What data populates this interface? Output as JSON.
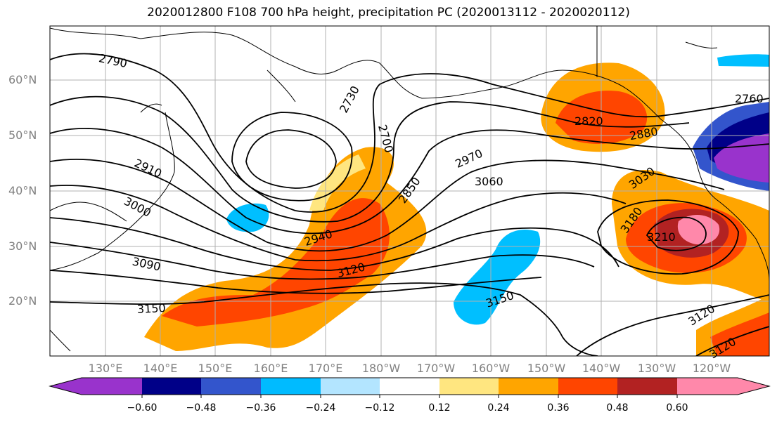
{
  "title": "2020012800 F108 700 hPa height, precipitation PC (2020013112 - 2020020112)",
  "lat_labels": [
    "60°N",
    "50°N",
    "40°N",
    "30°N",
    "20°N"
  ],
  "lon_labels": [
    "130°E",
    "140°E",
    "150°E",
    "160°E",
    "170°E",
    "180°W",
    "170°W",
    "160°W",
    "150°W",
    "140°W",
    "130°W",
    "120°W"
  ],
  "contour_labels": [
    "2790",
    "2730",
    "2700",
    "2760",
    "2820",
    "2880",
    "2910",
    "2970",
    "3000",
    "3030",
    "3060",
    "2850",
    "2940",
    "3120",
    "3090",
    "3150",
    "3180",
    "3210",
    "3150",
    "3120",
    "3120"
  ],
  "colorbar": {
    "ticks": [
      "−0.60",
      "−0.48",
      "−0.36",
      "−0.24",
      "−0.12",
      "0.12",
      "0.24",
      "0.36",
      "0.48",
      "0.60"
    ],
    "colors": [
      "#9933cc",
      "#000088",
      "#3355cc",
      "#00bbff",
      "#b3e5ff",
      "#ffffff",
      "#ffe680",
      "#ffa500",
      "#ff4500",
      "#b22222",
      "#ff88aa"
    ]
  },
  "palette": {
    "blue_light": "#00bfff",
    "blue_mid": "#3355cc",
    "navy": "#000088",
    "purple": "#9933cc",
    "yellow": "#ffe680",
    "orange": "#ffa500",
    "red_orange": "#ff4500",
    "dark_red": "#b22222",
    "pink": "#ff88aa",
    "grid": "#b0b0b0",
    "axis_label": "#808080"
  }
}
